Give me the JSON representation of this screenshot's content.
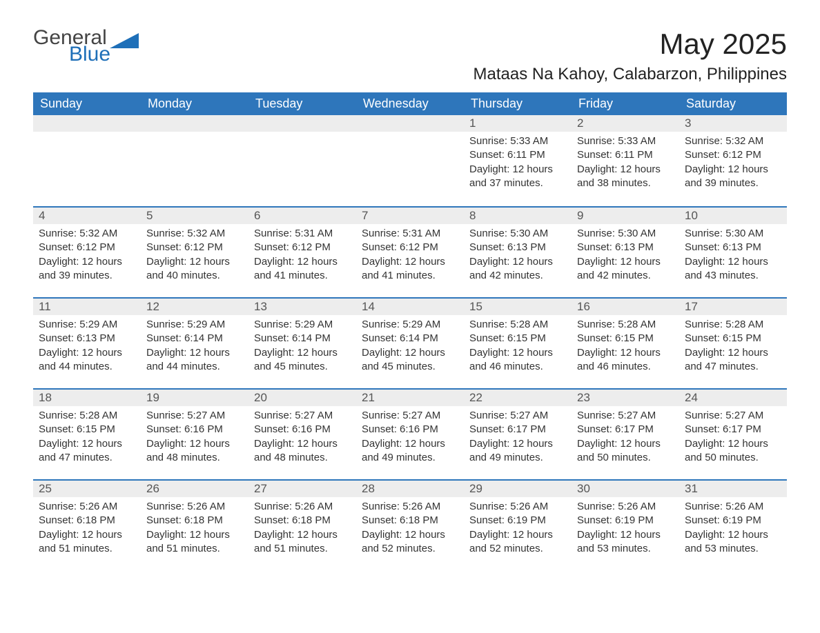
{
  "brand": {
    "word1": "General",
    "word2": "Blue",
    "accent_color": "#1e6fb8"
  },
  "title": "May 2025",
  "location": "Mataas Na Kahoy, Calabarzon, Philippines",
  "header_bg": "#2e76bb",
  "header_fg": "#ffffff",
  "daynum_bg": "#ededed",
  "rule_color": "#2e76bb",
  "weekdays": [
    "Sunday",
    "Monday",
    "Tuesday",
    "Wednesday",
    "Thursday",
    "Friday",
    "Saturday"
  ],
  "leading_blanks": 4,
  "days": [
    {
      "n": 1,
      "sunrise": "5:33 AM",
      "sunset": "6:11 PM",
      "daylight": "12 hours and 37 minutes."
    },
    {
      "n": 2,
      "sunrise": "5:33 AM",
      "sunset": "6:11 PM",
      "daylight": "12 hours and 38 minutes."
    },
    {
      "n": 3,
      "sunrise": "5:32 AM",
      "sunset": "6:12 PM",
      "daylight": "12 hours and 39 minutes."
    },
    {
      "n": 4,
      "sunrise": "5:32 AM",
      "sunset": "6:12 PM",
      "daylight": "12 hours and 39 minutes."
    },
    {
      "n": 5,
      "sunrise": "5:32 AM",
      "sunset": "6:12 PM",
      "daylight": "12 hours and 40 minutes."
    },
    {
      "n": 6,
      "sunrise": "5:31 AM",
      "sunset": "6:12 PM",
      "daylight": "12 hours and 41 minutes."
    },
    {
      "n": 7,
      "sunrise": "5:31 AM",
      "sunset": "6:12 PM",
      "daylight": "12 hours and 41 minutes."
    },
    {
      "n": 8,
      "sunrise": "5:30 AM",
      "sunset": "6:13 PM",
      "daylight": "12 hours and 42 minutes."
    },
    {
      "n": 9,
      "sunrise": "5:30 AM",
      "sunset": "6:13 PM",
      "daylight": "12 hours and 42 minutes."
    },
    {
      "n": 10,
      "sunrise": "5:30 AM",
      "sunset": "6:13 PM",
      "daylight": "12 hours and 43 minutes."
    },
    {
      "n": 11,
      "sunrise": "5:29 AM",
      "sunset": "6:13 PM",
      "daylight": "12 hours and 44 minutes."
    },
    {
      "n": 12,
      "sunrise": "5:29 AM",
      "sunset": "6:14 PM",
      "daylight": "12 hours and 44 minutes."
    },
    {
      "n": 13,
      "sunrise": "5:29 AM",
      "sunset": "6:14 PM",
      "daylight": "12 hours and 45 minutes."
    },
    {
      "n": 14,
      "sunrise": "5:29 AM",
      "sunset": "6:14 PM",
      "daylight": "12 hours and 45 minutes."
    },
    {
      "n": 15,
      "sunrise": "5:28 AM",
      "sunset": "6:15 PM",
      "daylight": "12 hours and 46 minutes."
    },
    {
      "n": 16,
      "sunrise": "5:28 AM",
      "sunset": "6:15 PM",
      "daylight": "12 hours and 46 minutes."
    },
    {
      "n": 17,
      "sunrise": "5:28 AM",
      "sunset": "6:15 PM",
      "daylight": "12 hours and 47 minutes."
    },
    {
      "n": 18,
      "sunrise": "5:28 AM",
      "sunset": "6:15 PM",
      "daylight": "12 hours and 47 minutes."
    },
    {
      "n": 19,
      "sunrise": "5:27 AM",
      "sunset": "6:16 PM",
      "daylight": "12 hours and 48 minutes."
    },
    {
      "n": 20,
      "sunrise": "5:27 AM",
      "sunset": "6:16 PM",
      "daylight": "12 hours and 48 minutes."
    },
    {
      "n": 21,
      "sunrise": "5:27 AM",
      "sunset": "6:16 PM",
      "daylight": "12 hours and 49 minutes."
    },
    {
      "n": 22,
      "sunrise": "5:27 AM",
      "sunset": "6:17 PM",
      "daylight": "12 hours and 49 minutes."
    },
    {
      "n": 23,
      "sunrise": "5:27 AM",
      "sunset": "6:17 PM",
      "daylight": "12 hours and 50 minutes."
    },
    {
      "n": 24,
      "sunrise": "5:27 AM",
      "sunset": "6:17 PM",
      "daylight": "12 hours and 50 minutes."
    },
    {
      "n": 25,
      "sunrise": "5:26 AM",
      "sunset": "6:18 PM",
      "daylight": "12 hours and 51 minutes."
    },
    {
      "n": 26,
      "sunrise": "5:26 AM",
      "sunset": "6:18 PM",
      "daylight": "12 hours and 51 minutes."
    },
    {
      "n": 27,
      "sunrise": "5:26 AM",
      "sunset": "6:18 PM",
      "daylight": "12 hours and 51 minutes."
    },
    {
      "n": 28,
      "sunrise": "5:26 AM",
      "sunset": "6:18 PM",
      "daylight": "12 hours and 52 minutes."
    },
    {
      "n": 29,
      "sunrise": "5:26 AM",
      "sunset": "6:19 PM",
      "daylight": "12 hours and 52 minutes."
    },
    {
      "n": 30,
      "sunrise": "5:26 AM",
      "sunset": "6:19 PM",
      "daylight": "12 hours and 53 minutes."
    },
    {
      "n": 31,
      "sunrise": "5:26 AM",
      "sunset": "6:19 PM",
      "daylight": "12 hours and 53 minutes."
    }
  ],
  "labels": {
    "sunrise": "Sunrise: ",
    "sunset": "Sunset: ",
    "daylight": "Daylight: "
  }
}
